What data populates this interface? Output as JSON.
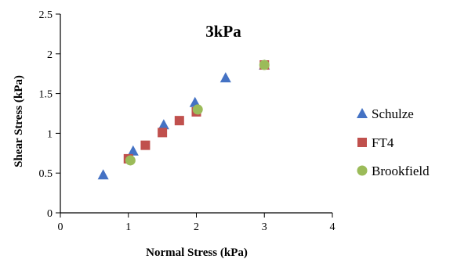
{
  "chart_data": {
    "type": "scatter",
    "title": "3kPa",
    "xlabel": "Normal Stress (kPa)",
    "ylabel": "Shear Stress (kPa)",
    "xlim": [
      0,
      4
    ],
    "ylim": [
      0,
      2.5
    ],
    "xticks": [
      "0",
      "1",
      "2",
      "3",
      "4"
    ],
    "yticks": [
      "0",
      "0.5",
      "1",
      "1.5",
      "2",
      "2.5"
    ],
    "grid": false,
    "legend_position": "right",
    "series": [
      {
        "name": "Schulze",
        "marker": "triangle",
        "color": "#4472c4",
        "points": [
          [
            0.63,
            0.48
          ],
          [
            1.07,
            0.78
          ],
          [
            1.52,
            1.11
          ],
          [
            1.98,
            1.39
          ],
          [
            2.43,
            1.7
          ],
          [
            3.0,
            1.86
          ]
        ]
      },
      {
        "name": "FT4",
        "marker": "square",
        "color": "#c0504d",
        "points": [
          [
            1.0,
            0.68
          ],
          [
            1.25,
            0.85
          ],
          [
            1.5,
            1.01
          ],
          [
            1.75,
            1.16
          ],
          [
            2.0,
            1.27
          ],
          [
            3.0,
            1.86
          ]
        ]
      },
      {
        "name": "Brookfield",
        "marker": "circle",
        "color": "#9bbb59",
        "points": [
          [
            1.03,
            0.66
          ],
          [
            2.02,
            1.3
          ],
          [
            3.0,
            1.86
          ]
        ]
      }
    ]
  }
}
